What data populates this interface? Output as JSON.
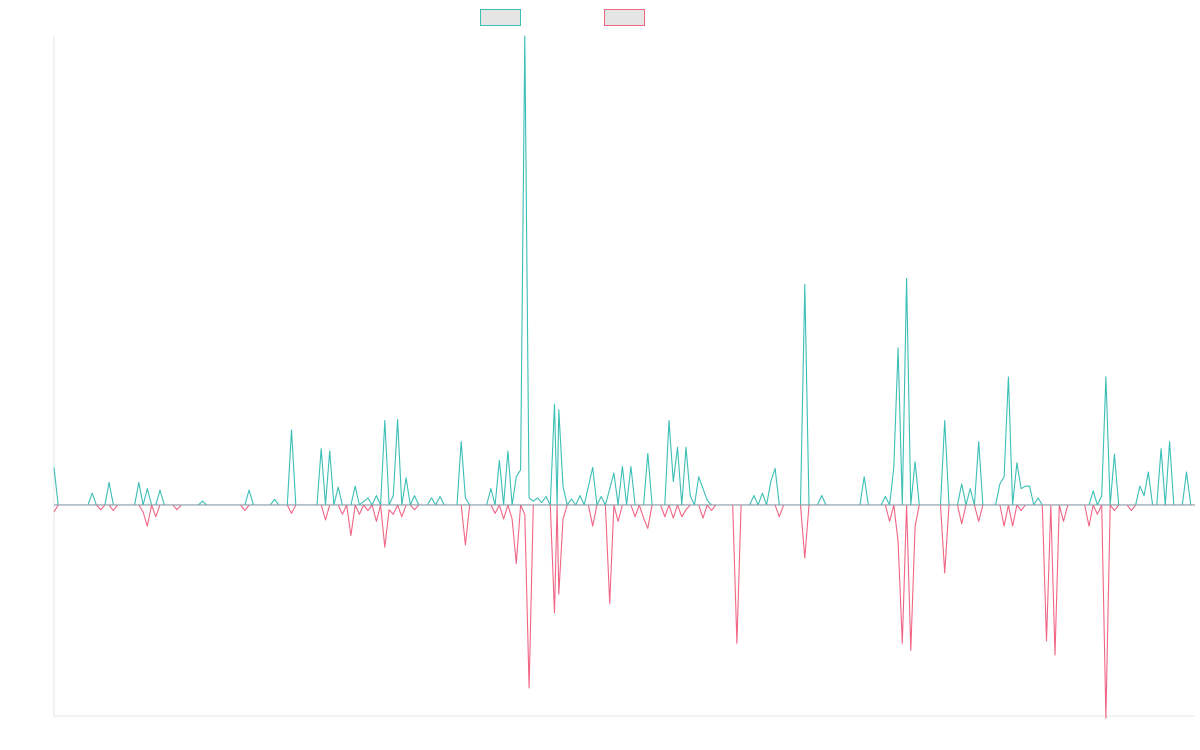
{
  "chart_data": {
    "type": "line",
    "title": "",
    "xlabel": "",
    "ylabel": "",
    "grid": false,
    "legend": {
      "placement": "top-center",
      "swatch_fill": "#e5e5e5"
    },
    "x": {
      "start": 0,
      "end": 230,
      "step": 1
    },
    "ylim": [
      -45,
      100
    ],
    "baseline": 0,
    "series": [
      {
        "key": "positive",
        "color": "#3bbfb5",
        "points": [
          [
            0,
            8
          ],
          [
            1,
            0
          ],
          [
            8,
            0
          ],
          [
            9,
            2.5
          ],
          [
            10,
            0
          ],
          [
            12,
            0
          ],
          [
            13,
            4.8
          ],
          [
            14,
            0
          ],
          [
            19,
            0
          ],
          [
            20,
            4.8
          ],
          [
            21,
            0
          ],
          [
            22,
            3.5
          ],
          [
            23,
            0
          ],
          [
            24,
            0
          ],
          [
            25,
            3.2
          ],
          [
            26,
            0
          ],
          [
            34,
            0
          ],
          [
            35,
            0.8
          ],
          [
            36,
            0
          ],
          [
            45,
            0
          ],
          [
            46,
            3.2
          ],
          [
            47,
            0
          ],
          [
            51,
            0
          ],
          [
            52,
            1.2
          ],
          [
            53,
            0
          ],
          [
            55,
            0
          ],
          [
            56,
            16
          ],
          [
            57,
            0
          ],
          [
            62,
            0
          ],
          [
            63,
            12
          ],
          [
            64,
            0
          ],
          [
            65,
            11.5
          ],
          [
            66,
            0
          ],
          [
            67,
            3.8
          ],
          [
            68,
            0
          ],
          [
            70,
            0
          ],
          [
            71,
            4
          ],
          [
            72,
            0
          ],
          [
            74,
            1.5
          ],
          [
            75,
            0
          ],
          [
            76,
            2
          ],
          [
            77,
            0
          ],
          [
            78,
            18
          ],
          [
            79,
            0
          ],
          [
            80,
            2
          ],
          [
            81,
            18.2
          ],
          [
            82,
            0
          ],
          [
            83,
            5.8
          ],
          [
            84,
            0
          ],
          [
            85,
            2
          ],
          [
            86,
            0
          ],
          [
            88,
            0
          ],
          [
            89,
            1.5
          ],
          [
            90,
            0
          ],
          [
            91,
            1.8
          ],
          [
            92,
            0
          ],
          [
            95,
            0
          ],
          [
            96,
            13.5
          ],
          [
            97,
            1.5
          ],
          [
            98,
            0
          ],
          [
            102,
            0
          ],
          [
            103,
            3.5
          ],
          [
            104,
            0
          ],
          [
            105,
            9.5
          ],
          [
            106,
            0
          ],
          [
            107,
            11.5
          ],
          [
            108,
            0
          ],
          [
            109,
            6
          ],
          [
            110,
            7.5
          ],
          [
            111,
            100
          ],
          [
            112,
            1.5
          ],
          [
            113,
            0.8
          ],
          [
            114,
            1.5
          ],
          [
            115,
            0.5
          ],
          [
            116,
            1.8
          ],
          [
            117,
            0
          ],
          [
            118,
            21.5
          ],
          [
            118.6,
            0
          ],
          [
            119,
            20.3
          ],
          [
            120,
            4
          ],
          [
            121,
            0
          ],
          [
            122,
            1.3
          ],
          [
            123,
            0
          ],
          [
            124,
            2
          ],
          [
            125,
            0
          ],
          [
            127,
            8
          ],
          [
            128,
            0
          ],
          [
            129,
            1.8
          ],
          [
            130,
            0
          ],
          [
            132,
            6.8
          ],
          [
            133,
            0
          ],
          [
            134,
            8.2
          ],
          [
            135,
            0
          ],
          [
            136,
            8.2
          ],
          [
            137,
            0
          ],
          [
            139,
            0
          ],
          [
            140,
            11
          ],
          [
            141,
            0
          ],
          [
            144,
            0
          ],
          [
            145,
            18
          ],
          [
            146,
            5
          ],
          [
            147,
            12.3
          ],
          [
            148,
            0
          ],
          [
            149,
            12.3
          ],
          [
            150,
            2
          ],
          [
            151,
            0
          ],
          [
            152,
            6
          ],
          [
            153,
            3.5
          ],
          [
            154,
            1
          ],
          [
            155,
            0
          ],
          [
            164,
            0
          ],
          [
            165,
            2
          ],
          [
            166,
            0
          ],
          [
            167,
            2.5
          ],
          [
            168,
            0
          ],
          [
            169,
            5
          ],
          [
            170,
            7.8
          ],
          [
            171,
            0
          ],
          [
            176,
            0
          ],
          [
            177,
            47
          ],
          [
            178,
            0
          ],
          [
            180,
            0
          ],
          [
            181,
            2
          ],
          [
            182,
            0
          ],
          [
            190,
            0
          ],
          [
            191,
            6
          ],
          [
            192,
            0
          ],
          [
            195,
            0
          ],
          [
            196,
            1.8
          ],
          [
            197,
            0
          ],
          [
            198,
            8
          ],
          [
            199,
            33.5
          ],
          [
            200,
            0
          ],
          [
            201,
            48.3
          ],
          [
            202,
            0
          ],
          [
            203,
            9.2
          ],
          [
            204,
            0
          ],
          [
            209,
            0
          ],
          [
            210,
            18
          ],
          [
            211,
            0
          ],
          [
            213,
            0
          ],
          [
            214,
            4.5
          ],
          [
            215,
            0
          ],
          [
            216,
            3.5
          ],
          [
            217,
            0
          ],
          [
            218,
            13.5
          ],
          [
            219,
            0
          ],
          [
            222,
            0
          ],
          [
            223,
            4.5
          ],
          [
            224,
            6
          ],
          [
            225,
            27.3
          ],
          [
            226,
            0
          ],
          [
            227,
            9
          ],
          [
            228,
            3.5
          ],
          [
            229,
            4
          ],
          [
            230,
            4
          ],
          [
            231,
            0
          ],
          [
            232,
            1.5
          ],
          [
            233,
            0
          ],
          [
            244,
            0
          ],
          [
            245,
            3
          ],
          [
            246,
            0
          ],
          [
            247,
            2
          ],
          [
            248,
            27.3
          ],
          [
            249,
            0
          ],
          [
            250,
            10.8
          ],
          [
            251,
            0
          ],
          [
            255,
            0
          ],
          [
            256,
            4
          ],
          [
            257,
            2
          ],
          [
            258,
            7
          ],
          [
            259,
            0
          ],
          [
            260,
            0
          ],
          [
            261,
            12
          ],
          [
            262,
            0
          ],
          [
            263,
            13.5
          ],
          [
            264,
            0
          ],
          [
            266,
            0
          ],
          [
            267,
            7
          ],
          [
            268,
            0
          ],
          [
            269,
            0
          ]
        ]
      },
      {
        "key": "negative",
        "color": "#f06584",
        "points": [
          [
            0,
            -1.5
          ],
          [
            1,
            0
          ],
          [
            10,
            0
          ],
          [
            11,
            -1
          ],
          [
            12,
            0
          ],
          [
            13,
            0
          ],
          [
            14,
            -1.2
          ],
          [
            15,
            0
          ],
          [
            20,
            0
          ],
          [
            21,
            -1.5
          ],
          [
            22,
            -4.5
          ],
          [
            23,
            0
          ],
          [
            24,
            -2.5
          ],
          [
            25,
            0
          ],
          [
            28,
            0
          ],
          [
            29,
            -1
          ],
          [
            30,
            0
          ],
          [
            44,
            0
          ],
          [
            45,
            -1.2
          ],
          [
            46,
            0
          ],
          [
            55,
            0
          ],
          [
            56,
            -1.8
          ],
          [
            57,
            0
          ],
          [
            63,
            0
          ],
          [
            64,
            -3.2
          ],
          [
            65,
            0
          ],
          [
            67,
            0
          ],
          [
            68,
            -2
          ],
          [
            69,
            0
          ],
          [
            70,
            -6.5
          ],
          [
            71,
            0
          ],
          [
            72,
            -2
          ],
          [
            73,
            0
          ],
          [
            74,
            -1.2
          ],
          [
            75,
            0
          ],
          [
            76,
            -3.5
          ],
          [
            77,
            0
          ],
          [
            78,
            -9
          ],
          [
            79,
            -1
          ],
          [
            80,
            -2
          ],
          [
            81,
            0
          ],
          [
            82,
            -2.5
          ],
          [
            83,
            0
          ],
          [
            84,
            0
          ],
          [
            85,
            -1
          ],
          [
            86,
            0
          ],
          [
            96,
            0
          ],
          [
            97,
            -8.5
          ],
          [
            98,
            0
          ],
          [
            103,
            0
          ],
          [
            104,
            -1.8
          ],
          [
            105,
            0
          ],
          [
            106,
            -3
          ],
          [
            107,
            0
          ],
          [
            108,
            -3
          ],
          [
            109,
            -12.5
          ],
          [
            110,
            0
          ],
          [
            111,
            -2
          ],
          [
            112,
            -39
          ],
          [
            113,
            0
          ],
          [
            117,
            0
          ],
          [
            118,
            -23
          ],
          [
            118.6,
            0
          ],
          [
            119,
            -19
          ],
          [
            120,
            -3
          ],
          [
            121,
            0
          ],
          [
            126,
            0
          ],
          [
            127,
            -4.5
          ],
          [
            128,
            0
          ],
          [
            130,
            0
          ],
          [
            131,
            -21
          ],
          [
            132,
            0
          ],
          [
            133,
            -3.5
          ],
          [
            134,
            0
          ],
          [
            136,
            0
          ],
          [
            137,
            -2.5
          ],
          [
            138,
            0
          ],
          [
            139,
            -2.8
          ],
          [
            140,
            -5
          ],
          [
            141,
            0
          ],
          [
            143,
            0
          ],
          [
            144,
            -2.5
          ],
          [
            145,
            0
          ],
          [
            146,
            -2.8
          ],
          [
            147,
            0
          ],
          [
            148,
            -2.5
          ],
          [
            149,
            -1
          ],
          [
            150,
            0
          ],
          [
            152,
            0
          ],
          [
            153,
            -2.8
          ],
          [
            154,
            0
          ],
          [
            155,
            -1.2
          ],
          [
            156,
            0
          ],
          [
            160,
            0
          ],
          [
            161,
            -29.5
          ],
          [
            162,
            0
          ],
          [
            170,
            0
          ],
          [
            171,
            -2.5
          ],
          [
            172,
            0
          ],
          [
            176,
            0
          ],
          [
            177,
            -11.3
          ],
          [
            178,
            0
          ],
          [
            196,
            0
          ],
          [
            197,
            -3.5
          ],
          [
            198,
            0
          ],
          [
            199,
            -7.8
          ],
          [
            200,
            -29.5
          ],
          [
            201,
            0
          ],
          [
            202,
            -31
          ],
          [
            203,
            -4.5
          ],
          [
            204,
            0
          ],
          [
            209,
            0
          ],
          [
            210,
            -14.5
          ],
          [
            211,
            0
          ],
          [
            213,
            0
          ],
          [
            214,
            -4
          ],
          [
            215,
            0
          ],
          [
            217,
            0
          ],
          [
            218,
            -3.5
          ],
          [
            219,
            0
          ],
          [
            223,
            0
          ],
          [
            224,
            -4.5
          ],
          [
            225,
            0
          ],
          [
            226,
            -4.5
          ],
          [
            227,
            0
          ],
          [
            228,
            -1.2
          ],
          [
            229,
            0
          ],
          [
            233,
            0
          ],
          [
            234,
            -29
          ],
          [
            235,
            0
          ],
          [
            236,
            -32
          ],
          [
            237,
            0
          ],
          [
            238,
            -3.5
          ],
          [
            239,
            0
          ],
          [
            243,
            0
          ],
          [
            244,
            -4.5
          ],
          [
            245,
            0
          ],
          [
            246,
            -2
          ],
          [
            247,
            0
          ],
          [
            248,
            -45.5
          ],
          [
            249,
            0
          ],
          [
            250,
            -1.2
          ],
          [
            251,
            0
          ],
          [
            253,
            0
          ],
          [
            254,
            -1.2
          ],
          [
            255,
            0
          ],
          [
            269,
            0
          ]
        ]
      }
    ]
  }
}
